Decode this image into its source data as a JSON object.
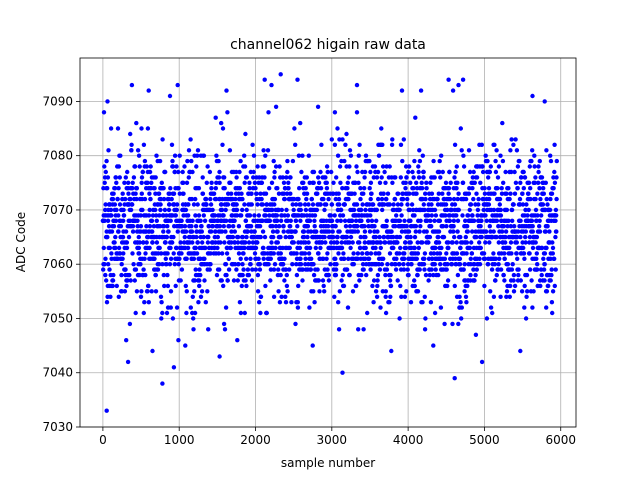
{
  "chart_data": {
    "type": "scatter",
    "title": "channel062 higain raw data",
    "xlabel": "sample number",
    "ylabel": "ADC Code",
    "xlim": [
      -300,
      6200
    ],
    "ylim": [
      7030,
      7098
    ],
    "xticks": [
      0,
      1000,
      2000,
      3000,
      4000,
      5000,
      6000
    ],
    "yticks": [
      7030,
      7040,
      7050,
      7060,
      7070,
      7080,
      7090
    ],
    "grid": true,
    "marker_color": "#0000ff",
    "n_samples": 5950,
    "baseline_mean": 7067,
    "baseline_spread": 7,
    "outliers": [
      {
        "x": 50,
        "y": 7033
      },
      {
        "x": 780,
        "y": 7038
      },
      {
        "x": 3140,
        "y": 7040
      },
      {
        "x": 4610,
        "y": 7039
      },
      {
        "x": 330,
        "y": 7042
      },
      {
        "x": 4970,
        "y": 7042
      },
      {
        "x": 930,
        "y": 7041
      },
      {
        "x": 1530,
        "y": 7043
      },
      {
        "x": 3780,
        "y": 7044
      },
      {
        "x": 5470,
        "y": 7044
      },
      {
        "x": 650,
        "y": 7044
      },
      {
        "x": 2750,
        "y": 7045
      },
      {
        "x": 1080,
        "y": 7045
      },
      {
        "x": 4330,
        "y": 7045
      },
      {
        "x": 2330,
        "y": 7095
      },
      {
        "x": 2120,
        "y": 7094
      },
      {
        "x": 2550,
        "y": 7094
      },
      {
        "x": 4530,
        "y": 7094
      },
      {
        "x": 4720,
        "y": 7094
      },
      {
        "x": 3330,
        "y": 7093
      },
      {
        "x": 380,
        "y": 7093
      },
      {
        "x": 980,
        "y": 7093
      },
      {
        "x": 4660,
        "y": 7093
      },
      {
        "x": 2210,
        "y": 7093
      },
      {
        "x": 600,
        "y": 7092
      },
      {
        "x": 1620,
        "y": 7092
      },
      {
        "x": 3920,
        "y": 7092
      },
      {
        "x": 4170,
        "y": 7092
      },
      {
        "x": 4590,
        "y": 7092
      },
      {
        "x": 5630,
        "y": 7091
      },
      {
        "x": 880,
        "y": 7091
      },
      {
        "x": 5790,
        "y": 7090
      },
      {
        "x": 60,
        "y": 7090
      },
      {
        "x": 2820,
        "y": 7089
      },
      {
        "x": 2270,
        "y": 7089
      },
      {
        "x": 3040,
        "y": 7088
      }
    ]
  }
}
